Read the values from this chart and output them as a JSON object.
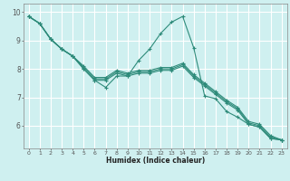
{
  "xlabel": "Humidex (Indice chaleur)",
  "bg_color": "#cff0f0",
  "grid_color": "#ffffff",
  "line_color": "#2e8b7a",
  "x_values": [
    0,
    1,
    2,
    3,
    4,
    5,
    6,
    7,
    8,
    9,
    10,
    11,
    12,
    13,
    14,
    15,
    16,
    17,
    18,
    19,
    20,
    21,
    22,
    23
  ],
  "series_main": [
    9.85,
    9.6,
    9.05,
    8.7,
    8.45,
    8.0,
    7.6,
    7.35,
    7.75,
    7.75,
    8.3,
    8.7,
    9.25,
    9.65,
    9.85,
    8.75,
    7.05,
    6.95,
    6.5,
    6.3,
    6.05,
    5.95,
    5.55,
    5.5
  ],
  "series_a": [
    9.85,
    9.6,
    9.05,
    8.7,
    8.45,
    8.0,
    7.6,
    7.6,
    7.85,
    7.75,
    7.85,
    7.85,
    7.95,
    7.95,
    8.1,
    7.7,
    7.4,
    7.1,
    6.8,
    6.55,
    6.05,
    5.95,
    5.55,
    5.5
  ],
  "series_b": [
    9.85,
    9.6,
    9.05,
    8.7,
    8.45,
    8.05,
    7.65,
    7.65,
    7.9,
    7.8,
    7.9,
    7.9,
    8.0,
    8.0,
    8.15,
    7.75,
    7.45,
    7.15,
    6.85,
    6.6,
    6.1,
    6.0,
    5.6,
    5.5
  ],
  "series_c": [
    9.85,
    9.6,
    9.05,
    8.7,
    8.45,
    8.1,
    7.7,
    7.7,
    7.95,
    7.85,
    7.95,
    7.95,
    8.05,
    8.05,
    8.2,
    7.8,
    7.5,
    7.2,
    6.9,
    6.65,
    6.15,
    6.05,
    5.65,
    5.5
  ],
  "ylim": [
    5.2,
    10.3
  ],
  "xlim": [
    -0.5,
    23.5
  ],
  "yticks": [
    6,
    7,
    8,
    9,
    10
  ],
  "xticks": [
    0,
    1,
    2,
    3,
    4,
    5,
    6,
    7,
    8,
    9,
    10,
    11,
    12,
    13,
    14,
    15,
    16,
    17,
    18,
    19,
    20,
    21,
    22,
    23
  ]
}
